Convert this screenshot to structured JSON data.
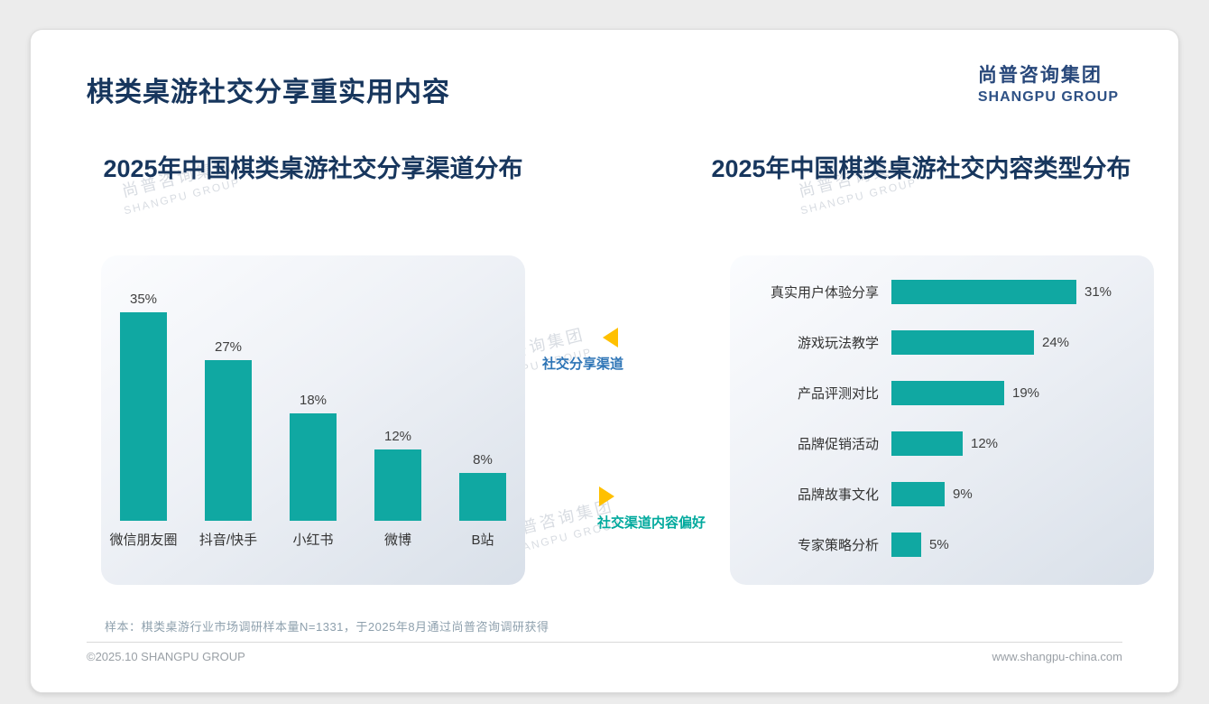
{
  "page": {
    "title": "棋类桌游社交分享重实用内容",
    "footnote": "样本：棋类桌游行业市场调研样本量N=1331，于2025年8月通过尚普咨询调研获得",
    "footer_left": "©2025.10 SHANGPU GROUP",
    "footer_right": "www.shangpu-china.com"
  },
  "logo": {
    "cn": "尚普咨询集团",
    "en": "SHANGPU GROUP"
  },
  "watermark": {
    "cn": "尚普咨询集团",
    "en": "SHANGPU GROUP"
  },
  "annotations": {
    "share_channel": "社交分享渠道",
    "content_preference": "社交渠道内容偏好"
  },
  "colors": {
    "bar_teal": "#10a8a2",
    "title_navy": "#17365d",
    "arrow_yellow": "#ffc000",
    "annotation_blue": "#2e75b6",
    "annotation_teal": "#00a99d"
  },
  "chart_data": [
    {
      "type": "bar",
      "orientation": "vertical",
      "title": "2025年中国棋类桌游社交分享渠道分布",
      "categories": [
        "微信朋友圈",
        "抖音/快手",
        "小红书",
        "微博",
        "B站"
      ],
      "values": [
        35,
        27,
        18,
        12,
        8
      ],
      "unit": "%",
      "bar_color": "#10a8a2",
      "ylim": [
        0,
        40
      ],
      "grid": false,
      "data_labels": true
    },
    {
      "type": "bar",
      "orientation": "horizontal",
      "title": "2025年中国棋类桌游社交内容类型分布",
      "categories": [
        "真实用户体验分享",
        "游戏玩法教学",
        "产品评测对比",
        "品牌促销活动",
        "品牌故事文化",
        "专家策略分析"
      ],
      "values": [
        31,
        24,
        19,
        12,
        9,
        5
      ],
      "unit": "%",
      "bar_color": "#10a8a2",
      "xlim": [
        0,
        35
      ],
      "grid": false,
      "data_labels": true
    }
  ]
}
